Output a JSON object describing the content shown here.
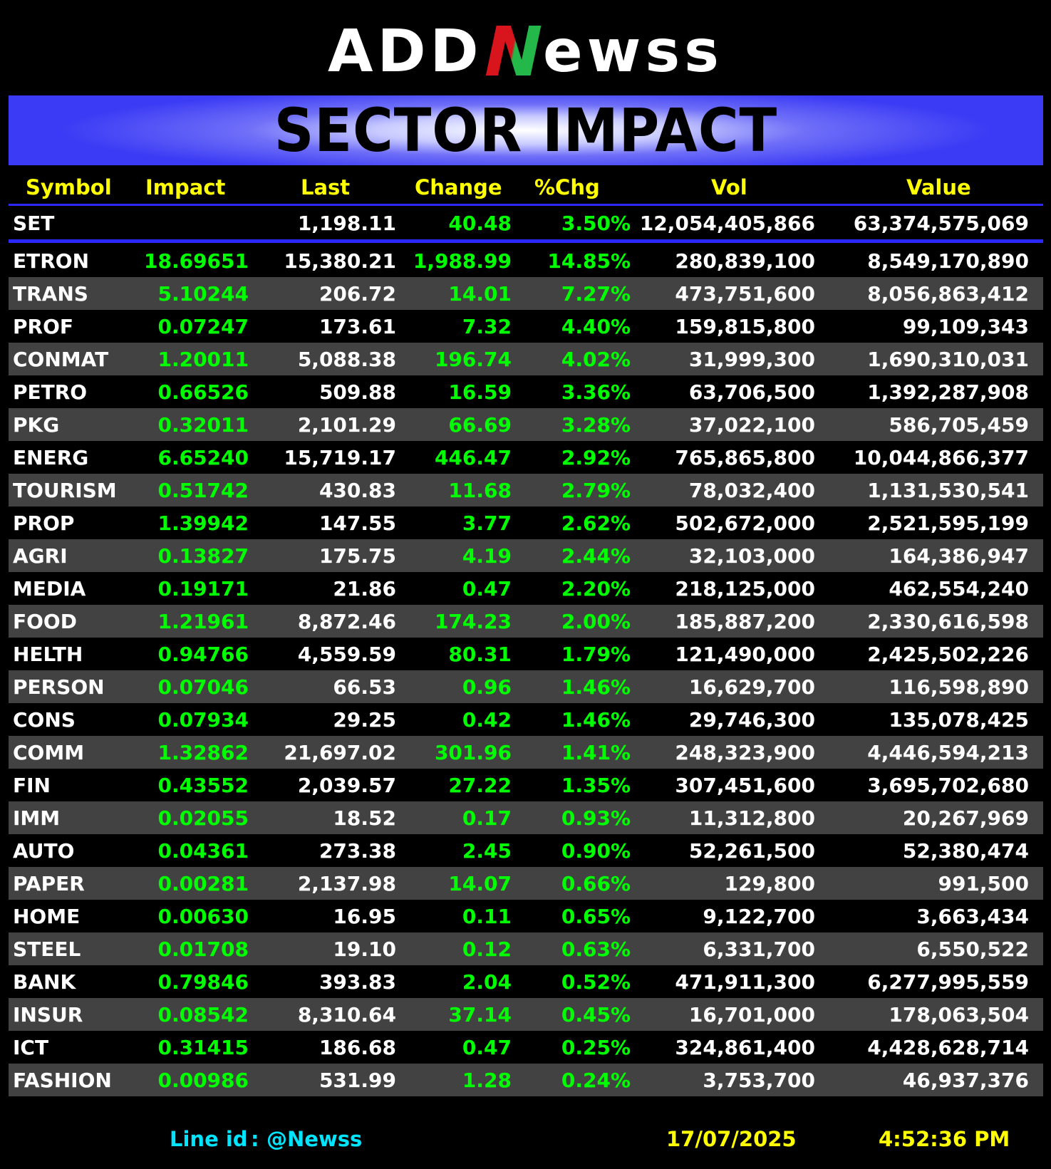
{
  "logo": {
    "prefix": "ADD",
    "accent": "N",
    "suffix": "ewss"
  },
  "title": "SECTOR IMPACT",
  "headers": {
    "symbol": "Symbol",
    "impact": "Impact",
    "last": "Last",
    "change": "Change",
    "pct": "%Chg",
    "vol": "Vol",
    "value": "Value"
  },
  "set": {
    "symbol": "SET",
    "last": "1,198.11",
    "change": "40.48",
    "pct": "3.50%",
    "vol": "12,054,405,866",
    "value": "63,374,575,069"
  },
  "rows": [
    {
      "symbol": "ETRON",
      "impact": "18.69651",
      "last": "15,380.21",
      "change": "1,988.99",
      "pct": "14.85%",
      "vol": "280,839,100",
      "value": "8,549,170,890"
    },
    {
      "symbol": "TRANS",
      "impact": "5.10244",
      "last": "206.72",
      "change": "14.01",
      "pct": "7.27%",
      "vol": "473,751,600",
      "value": "8,056,863,412"
    },
    {
      "symbol": "PROF",
      "impact": "0.07247",
      "last": "173.61",
      "change": "7.32",
      "pct": "4.40%",
      "vol": "159,815,800",
      "value": "99,109,343"
    },
    {
      "symbol": "CONMAT",
      "impact": "1.20011",
      "last": "5,088.38",
      "change": "196.74",
      "pct": "4.02%",
      "vol": "31,999,300",
      "value": "1,690,310,031"
    },
    {
      "symbol": "PETRO",
      "impact": "0.66526",
      "last": "509.88",
      "change": "16.59",
      "pct": "3.36%",
      "vol": "63,706,500",
      "value": "1,392,287,908"
    },
    {
      "symbol": "PKG",
      "impact": "0.32011",
      "last": "2,101.29",
      "change": "66.69",
      "pct": "3.28%",
      "vol": "37,022,100",
      "value": "586,705,459"
    },
    {
      "symbol": "ENERG",
      "impact": "6.65240",
      "last": "15,719.17",
      "change": "446.47",
      "pct": "2.92%",
      "vol": "765,865,800",
      "value": "10,044,866,377"
    },
    {
      "symbol": "TOURISM",
      "impact": "0.51742",
      "last": "430.83",
      "change": "11.68",
      "pct": "2.79%",
      "vol": "78,032,400",
      "value": "1,131,530,541"
    },
    {
      "symbol": "PROP",
      "impact": "1.39942",
      "last": "147.55",
      "change": "3.77",
      "pct": "2.62%",
      "vol": "502,672,000",
      "value": "2,521,595,199"
    },
    {
      "symbol": "AGRI",
      "impact": "0.13827",
      "last": "175.75",
      "change": "4.19",
      "pct": "2.44%",
      "vol": "32,103,000",
      "value": "164,386,947"
    },
    {
      "symbol": "MEDIA",
      "impact": "0.19171",
      "last": "21.86",
      "change": "0.47",
      "pct": "2.20%",
      "vol": "218,125,000",
      "value": "462,554,240"
    },
    {
      "symbol": "FOOD",
      "impact": "1.21961",
      "last": "8,872.46",
      "change": "174.23",
      "pct": "2.00%",
      "vol": "185,887,200",
      "value": "2,330,616,598"
    },
    {
      "symbol": "HELTH",
      "impact": "0.94766",
      "last": "4,559.59",
      "change": "80.31",
      "pct": "1.79%",
      "vol": "121,490,000",
      "value": "2,425,502,226"
    },
    {
      "symbol": "PERSON",
      "impact": "0.07046",
      "last": "66.53",
      "change": "0.96",
      "pct": "1.46%",
      "vol": "16,629,700",
      "value": "116,598,890"
    },
    {
      "symbol": "CONS",
      "impact": "0.07934",
      "last": "29.25",
      "change": "0.42",
      "pct": "1.46%",
      "vol": "29,746,300",
      "value": "135,078,425"
    },
    {
      "symbol": "COMM",
      "impact": "1.32862",
      "last": "21,697.02",
      "change": "301.96",
      "pct": "1.41%",
      "vol": "248,323,900",
      "value": "4,446,594,213"
    },
    {
      "symbol": "FIN",
      "impact": "0.43552",
      "last": "2,039.57",
      "change": "27.22",
      "pct": "1.35%",
      "vol": "307,451,600",
      "value": "3,695,702,680"
    },
    {
      "symbol": "IMM",
      "impact": "0.02055",
      "last": "18.52",
      "change": "0.17",
      "pct": "0.93%",
      "vol": "11,312,800",
      "value": "20,267,969"
    },
    {
      "symbol": "AUTO",
      "impact": "0.04361",
      "last": "273.38",
      "change": "2.45",
      "pct": "0.90%",
      "vol": "52,261,500",
      "value": "52,380,474"
    },
    {
      "symbol": "PAPER",
      "impact": "0.00281",
      "last": "2,137.98",
      "change": "14.07",
      "pct": "0.66%",
      "vol": "129,800",
      "value": "991,500"
    },
    {
      "symbol": "HOME",
      "impact": "0.00630",
      "last": "16.95",
      "change": "0.11",
      "pct": "0.65%",
      "vol": "9,122,700",
      "value": "3,663,434"
    },
    {
      "symbol": "STEEL",
      "impact": "0.01708",
      "last": "19.10",
      "change": "0.12",
      "pct": "0.63%",
      "vol": "6,331,700",
      "value": "6,550,522"
    },
    {
      "symbol": "BANK",
      "impact": "0.79846",
      "last": "393.83",
      "change": "2.04",
      "pct": "0.52%",
      "vol": "471,911,300",
      "value": "6,277,995,559"
    },
    {
      "symbol": "INSUR",
      "impact": "0.08542",
      "last": "8,310.64",
      "change": "37.14",
      "pct": "0.45%",
      "vol": "16,701,000",
      "value": "178,063,504"
    },
    {
      "symbol": "ICT",
      "impact": "0.31415",
      "last": "186.68",
      "change": "0.47",
      "pct": "0.25%",
      "vol": "324,861,400",
      "value": "4,428,628,714"
    },
    {
      "symbol": "FASHION",
      "impact": "0.00986",
      "last": "531.99",
      "change": "1.28",
      "pct": "0.24%",
      "vol": "3,753,700",
      "value": "46,937,376"
    }
  ],
  "footer": {
    "line_label": "Line id",
    "line_sep": ":",
    "line_handle": "@Newss",
    "date": "17/07/2025",
    "time": "4:52:36 PM"
  },
  "colors": {
    "background": "#000000",
    "positive": "#00ff00",
    "header": "#ffff00",
    "divider": "#2a2aff",
    "row_alt": "#424242",
    "footer_line": "#00e5ff"
  }
}
